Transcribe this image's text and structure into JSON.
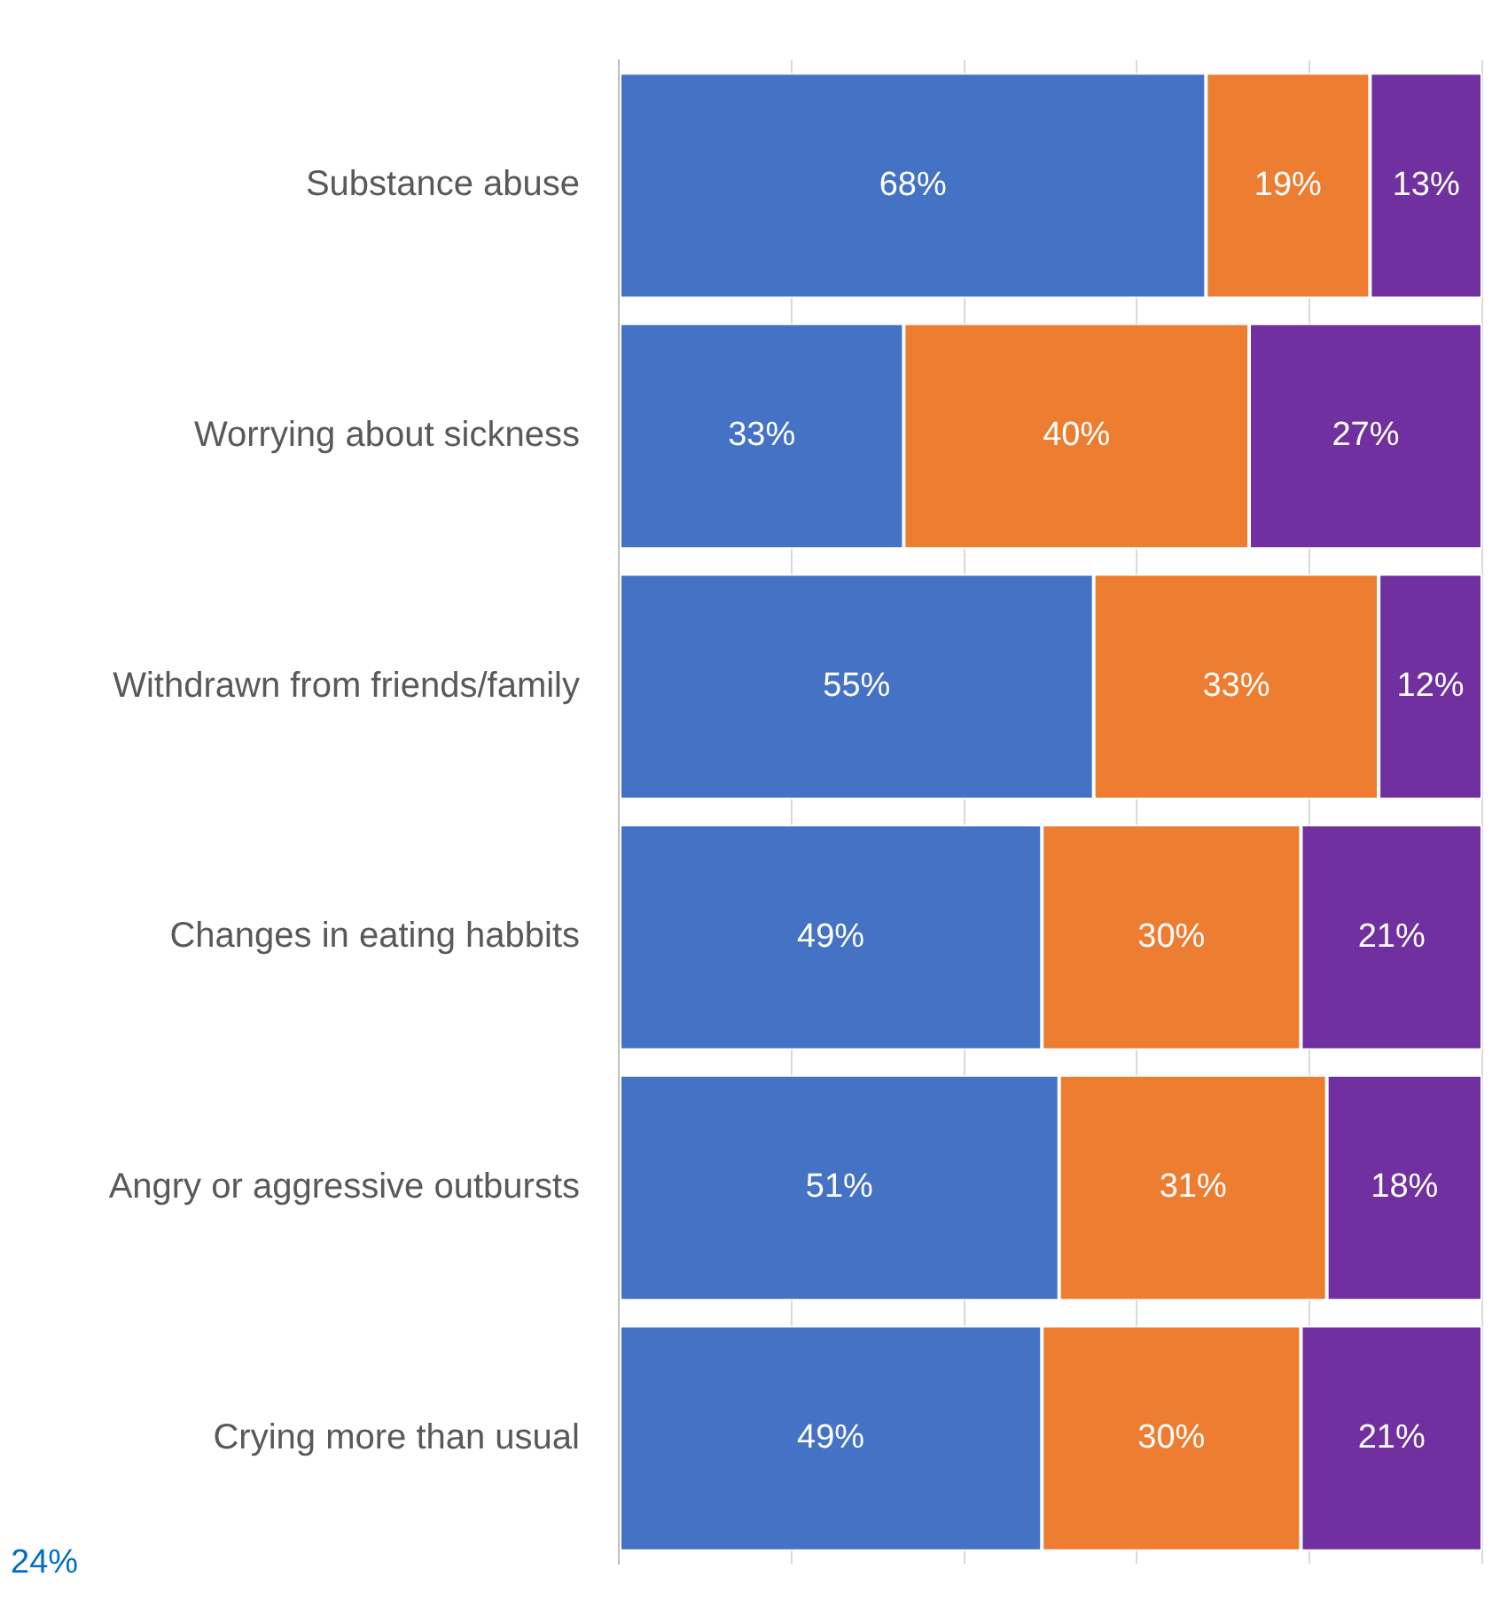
{
  "chart_data": {
    "type": "bar",
    "orientation": "horizontal",
    "stacked": true,
    "categories": [
      "Substance abuse",
      "Worrying about sickness",
      "Withdrawn from friends/family",
      "Changes in eating habbits",
      "Angry or aggressive outbursts",
      "Crying more than usual"
    ],
    "series": [
      {
        "color": "#4472c4",
        "values": [
          68,
          33,
          55,
          49,
          51,
          49
        ],
        "value_labels": [
          "68%",
          "33%",
          "55%",
          "49%",
          "51%",
          "49%"
        ]
      },
      {
        "color": "#ed7d31",
        "values": [
          19,
          40,
          33,
          30,
          31,
          30
        ],
        "value_labels": [
          "19%",
          "40%",
          "33%",
          "30%",
          "31%",
          "30%"
        ]
      },
      {
        "color": "#7030a0",
        "values": [
          13,
          27,
          12,
          21,
          18,
          21
        ],
        "value_labels": [
          "13%",
          "27%",
          "12%",
          "21%",
          "18%",
          "21%"
        ]
      }
    ],
    "xlim": [
      0,
      100
    ],
    "xticks": [
      {
        "value": 0,
        "label": null
      },
      {
        "value": 20,
        "label": null
      },
      {
        "value": 40,
        "label": null
      },
      {
        "value": 60,
        "label": null
      },
      {
        "value": 80,
        "label": null
      },
      {
        "value": 100,
        "label": null
      }
    ],
    "grid": "x",
    "tick_labels": "y",
    "legend": false,
    "annotations": [
      "24%"
    ]
  }
}
